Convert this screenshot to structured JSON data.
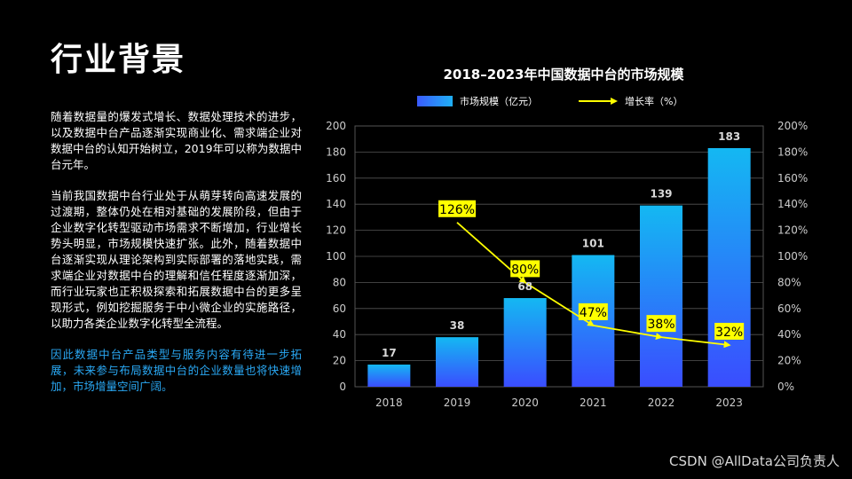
{
  "page": {
    "title": "行业背景",
    "paragraphs": [
      "随着数据量的爆发式增长、数据处理技术的进步，以及数据中台产品逐渐实现商业化、需求端企业对数据中台的认知开始树立，2019年可以称为数据中台元年。",
      "当前我国数据中台行业处于从萌芽转向高速发展的过渡期，整体仍处在相对基础的发展阶段，但由于企业数字化转型驱动市场需求不断增加，行业增长势头明显，市场规模快速扩张。此外，随着数据中台逐渐实现从理论架构到实际部署的落地实践，需求端企业对数据中台的理解和信任程度逐渐加深，而行业玩家也正积极探索和拓展数据中台的更多呈现形式，例如挖掘服务于中小微企业的实施路径，以助力各类企业数字化转型全流程。"
    ],
    "highlight": "因此数据中台产品类型与服务内容有待进一步拓展，未来参与布局数据中台的企业数量也将快速增加，市场增量空间广阔。",
    "watermark": "CSDN @AllData公司负责人"
  },
  "colors": {
    "background": "#000000",
    "bar_top": "#14b8f2",
    "bar_bottom": "#3a4dff",
    "growth_line": "#ffff00",
    "label_bg": "#ffff00",
    "highlight_text": "#2aa9f5",
    "axis_text": "#cccccc",
    "gridline": "#555555"
  },
  "chart_data": {
    "type": "bar",
    "title": "2018–2023年中国数据中台的市场规模",
    "categories": [
      "2018",
      "2019",
      "2020",
      "2021",
      "2022",
      "2023"
    ],
    "series": [
      {
        "name": "市场规模（亿元）",
        "type": "bar",
        "axis": "left",
        "values": [
          17,
          38,
          68,
          101,
          139,
          183
        ],
        "labels": [
          "17",
          "38",
          "68",
          "101",
          "139",
          "183"
        ]
      },
      {
        "name": "增长率（%）",
        "type": "line",
        "axis": "right",
        "x": [
          "2019",
          "2020",
          "2021",
          "2022",
          "2023"
        ],
        "values": [
          126,
          80,
          47,
          38,
          32
        ],
        "labels": [
          "126%",
          "80%",
          "47%",
          "38%",
          "32%"
        ]
      }
    ],
    "ylim_left": [
      0,
      200
    ],
    "yticks_left": [
      "0",
      "20",
      "40",
      "60",
      "80",
      "100",
      "120",
      "140",
      "160",
      "180",
      "200"
    ],
    "ylim_right": [
      0,
      200
    ],
    "yticks_right": [
      "0%",
      "20%",
      "40%",
      "60%",
      "80%",
      "100%",
      "120%",
      "140%",
      "160%",
      "180%",
      "200%"
    ],
    "grid": true,
    "legend": "top"
  }
}
